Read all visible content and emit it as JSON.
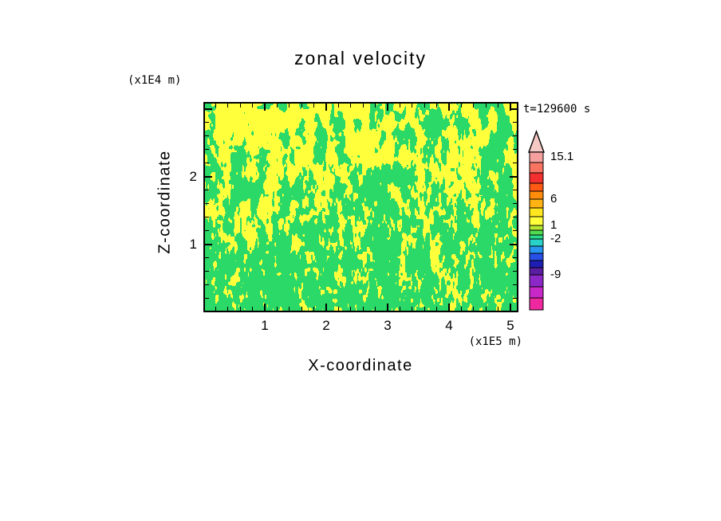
{
  "title": "zonal velocity",
  "time_label": "t=129600 s",
  "z_unit_label": "(x1E4 m)",
  "x_unit_label": "(x1E5 m)",
  "x_axis_label": "X-coordinate",
  "z_axis_label": "Z-coordinate",
  "chart_data": {
    "type": "heatmap",
    "title": "zonal velocity",
    "xlabel": "X-coordinate",
    "ylabel": "Z-coordinate",
    "x_units": "(x1E5 m)",
    "y_units": "(x1E4 m)",
    "time_annotation": "t=129600 s",
    "xlim": [
      0,
      5.13
    ],
    "ylim": [
      0,
      3.1
    ],
    "x_ticks": [
      1,
      2,
      3,
      4,
      5
    ],
    "y_ticks": [
      1,
      2
    ],
    "minor_tick_interval": 0.2,
    "grid": false,
    "legend_position": "right-colorbar",
    "field_description": "turbulent two-tone zonal velocity field; fine vertical/diagonal filaments, mostly values in the 0-1 band (green) and 1-6 band (yellow), yellow denser near top, green denser near bottom",
    "field_colors": {
      "low": "#2bd968",
      "high": "#ffff3c"
    },
    "colorbar": {
      "arrow_color": "#f6c9c4",
      "segments": [
        {
          "color": "#f59f9f",
          "h": 13
        },
        {
          "color": "#f87461",
          "h": 13
        },
        {
          "color": "#f23030",
          "h": 13
        },
        {
          "color": "#ff5a14",
          "h": 10
        },
        {
          "color": "#ff8c0a",
          "h": 10
        },
        {
          "color": "#ffb414",
          "h": 11
        },
        {
          "color": "#ffe61e",
          "h": 11
        },
        {
          "color": "#ffff3c",
          "h": 11
        },
        {
          "color": "#b4e632",
          "h": 6
        },
        {
          "color": "#50dc50",
          "h": 6
        },
        {
          "color": "#28dc8c",
          "h": 5
        },
        {
          "color": "#28d2c8",
          "h": 9
        },
        {
          "color": "#2896f0",
          "h": 9
        },
        {
          "color": "#2850e6",
          "h": 9
        },
        {
          "color": "#1e1eb4",
          "h": 9
        },
        {
          "color": "#5a1ea0",
          "h": 9
        },
        {
          "color": "#8c28c8",
          "h": 15
        },
        {
          "color": "#c828c8",
          "h": 14
        },
        {
          "color": "#f028a0",
          "h": 15
        }
      ],
      "labels": [
        {
          "text": "15.1",
          "y": 6
        },
        {
          "text": "6",
          "y": 59
        },
        {
          "text": "1",
          "y": 92
        },
        {
          "text": "-2",
          "y": 109
        },
        {
          "text": "-9",
          "y": 154
        }
      ]
    }
  }
}
